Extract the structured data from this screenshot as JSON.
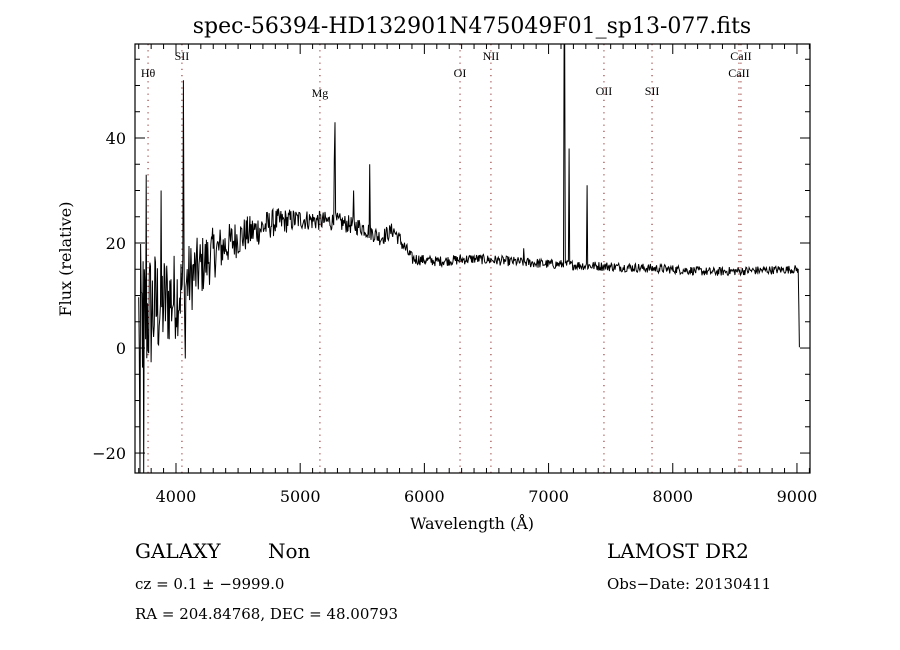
{
  "chart_data": {
    "type": "line",
    "title": "spec-56394-HD132901N475049F01_sp13-077.fits",
    "xlabel": "Wavelength (Å)",
    "ylabel": "Flux (relative)",
    "xlim": [
      3670,
      9105
    ],
    "ylim": [
      -23.8,
      57.9
    ],
    "xticks": [
      4000,
      5000,
      6000,
      7000,
      8000,
      9000
    ],
    "xtick_labels": [
      "4000",
      "5000",
      "6000",
      "7000",
      "8000",
      "9000"
    ],
    "yticks": [
      -20,
      0,
      20,
      40
    ],
    "ytick_labels": [
      "−20",
      "0",
      "20",
      "40"
    ],
    "grid": false,
    "continuum": [
      [
        3700,
        5
      ],
      [
        3850,
        8
      ],
      [
        4000,
        10
      ],
      [
        4100,
        13
      ],
      [
        4300,
        18
      ],
      [
        4500,
        21
      ],
      [
        4800,
        24
      ],
      [
        5000,
        24.5
      ],
      [
        5300,
        24
      ],
      [
        5500,
        23
      ],
      [
        5650,
        21
      ],
      [
        5750,
        22.5
      ],
      [
        5900,
        17
      ],
      [
        6100,
        16.5
      ],
      [
        6400,
        17
      ],
      [
        7000,
        16
      ],
      [
        7500,
        15.5
      ],
      [
        8000,
        15
      ],
      [
        8300,
        14.5
      ],
      [
        9000,
        15
      ],
      [
        9010,
        15
      ],
      [
        9020,
        0.5
      ]
    ],
    "noise_amplitude": [
      [
        3700,
        15
      ],
      [
        3900,
        10
      ],
      [
        4100,
        7
      ],
      [
        4400,
        4
      ],
      [
        5000,
        2
      ],
      [
        5800,
        1.5
      ],
      [
        6000,
        1
      ],
      [
        9020,
        0.8
      ]
    ],
    "peaks": [
      [
        3710,
        -24
      ],
      [
        3740,
        -24
      ],
      [
        3760,
        33
      ],
      [
        3880,
        30
      ],
      [
        4060,
        51
      ],
      [
        4075,
        -2
      ],
      [
        5275,
        36
      ],
      [
        5280,
        43
      ],
      [
        5430,
        30
      ],
      [
        5560,
        35
      ],
      [
        6800,
        19
      ],
      [
        7125,
        58
      ],
      [
        7130,
        58
      ],
      [
        7165,
        38
      ],
      [
        7310,
        31
      ]
    ],
    "line_markers": [
      {
        "label": "Hθ",
        "wavelength": 3775
      },
      {
        "label": "SII",
        "wavelength": 4048
      },
      {
        "label": "Mg",
        "wavelength": 5159
      },
      {
        "label": "OI",
        "wavelength": 6287
      },
      {
        "label": "NII",
        "wavelength": 6536
      },
      {
        "label": "OII",
        "wavelength": 7446
      },
      {
        "label": "SII",
        "wavelength": 7833
      },
      {
        "label": "CaII",
        "wavelength": 8549
      },
      {
        "label": "CaII",
        "wavelength": 8533
      }
    ],
    "marker_color": "#8b1a1a",
    "line_color": "#000000"
  },
  "info": {
    "object_class": "GALAXY",
    "subclass": "Non",
    "survey": "LAMOST DR2",
    "cz": "cz = 0.1 ± −9999.0",
    "obs_date": "Obs−Date: 20130411",
    "coords": "RA = 204.84768, DEC =  48.00793"
  }
}
